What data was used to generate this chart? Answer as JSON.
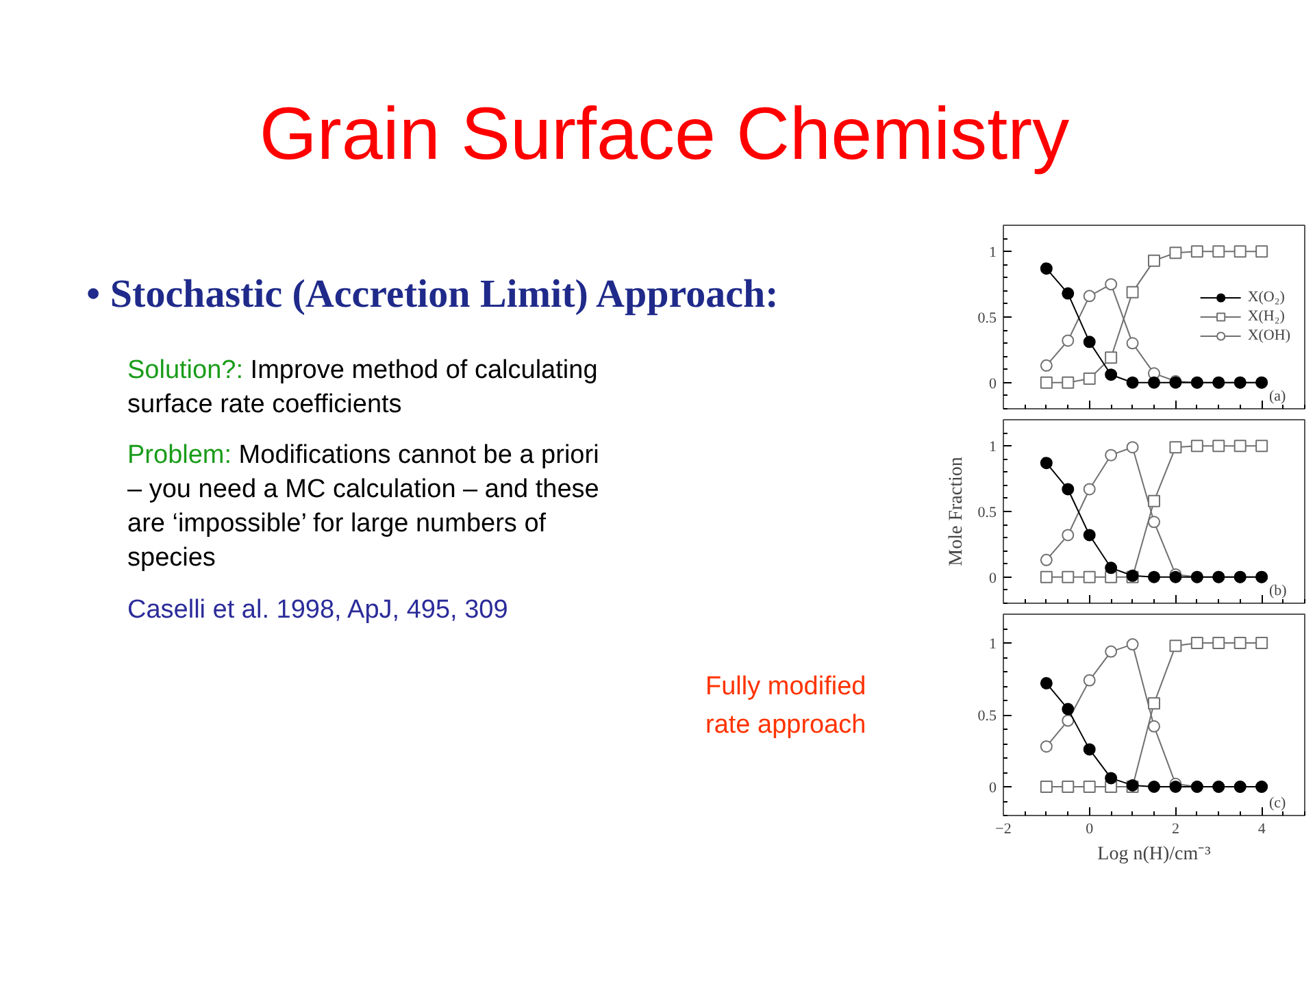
{
  "chart_data": [
    {
      "type": "other",
      "title": "Grain Surface Chemistry",
      "annotations": [
        "• Stochastic (Accretion Limit) Approach:",
        "Solution?:",
        "Improve method of calculating surface rate coefficients",
        "Problem:",
        "Modifications cannot be a priori – you need a MC calculation – and these are ‘impossible’ for large numbers of species",
        "Caselli et al. 1998, ApJ, 495, 309",
        "Fully modified rate approach"
      ]
    },
    {
      "type": "line",
      "x": [
        -1,
        -0.5,
        0,
        0.5,
        1,
        1.5,
        2,
        2.5,
        3,
        3.5,
        4
      ],
      "xlim": [
        -2,
        5
      ],
      "xticks": [
        -2,
        0,
        2,
        4
      ],
      "ylim": [
        -0.2,
        1.2
      ],
      "yticks": [
        0,
        0.5,
        1
      ],
      "tick_labels": "y",
      "grid": false,
      "legend": "right",
      "annotations": [
        "(a)"
      ],
      "series": [
        {
          "name": "X(O₂)",
          "color": "#000000",
          "marker": "circle",
          "values": [
            0.87,
            0.68,
            0.31,
            0.06,
            0,
            0,
            0,
            0,
            0,
            0,
            0
          ]
        },
        {
          "name": "X(H₂)",
          "color": "#707070",
          "marker": "square",
          "values": [
            0,
            0,
            0.03,
            0.19,
            0.69,
            0.93,
            0.99,
            1,
            1,
            1,
            1
          ]
        },
        {
          "name": "X(OH)",
          "color": "#707070",
          "marker": "circle",
          "values": [
            0.13,
            0.32,
            0.66,
            0.75,
            0.3,
            0.07,
            0.01,
            0,
            0,
            0,
            0
          ]
        }
      ]
    },
    {
      "type": "line",
      "x": [
        -1,
        -0.5,
        0,
        0.5,
        1,
        1.5,
        2,
        2.5,
        3,
        3.5,
        4
      ],
      "xlim": [
        -2,
        5
      ],
      "xticks": [
        -2,
        0,
        2,
        4
      ],
      "ylim": [
        -0.2,
        1.2
      ],
      "yticks": [
        0,
        0.5,
        1
      ],
      "tick_labels": "y",
      "grid": false,
      "ylabel": "Mole Fraction",
      "annotations": [
        "(b)"
      ],
      "series": [
        {
          "color": "#000000",
          "marker": "circle",
          "values": [
            0.87,
            0.67,
            0.32,
            0.07,
            0.01,
            0,
            0,
            0,
            0,
            0,
            0
          ]
        },
        {
          "color": "#707070",
          "marker": "square",
          "values": [
            0,
            0,
            0,
            0,
            0,
            0.58,
            0.99,
            1,
            1,
            1,
            1
          ]
        },
        {
          "color": "#707070",
          "marker": "circle",
          "values": [
            0.13,
            0.32,
            0.67,
            0.93,
            0.99,
            0.42,
            0.02,
            0,
            0,
            0,
            0
          ]
        }
      ]
    },
    {
      "type": "line",
      "x": [
        -1,
        -0.5,
        0,
        0.5,
        1,
        1.5,
        2,
        2.5,
        3,
        3.5,
        4
      ],
      "xlim": [
        -2,
        5
      ],
      "xticks": [
        -2,
        0,
        2,
        4
      ],
      "ylim": [
        -0.2,
        1.2
      ],
      "yticks": [
        0,
        0.5,
        1
      ],
      "grid": false,
      "xlabel": "Log n(H)/cm⁻³",
      "annotations": [
        "(c)"
      ],
      "series": [
        {
          "color": "#000000",
          "marker": "circle",
          "values": [
            0.72,
            0.54,
            0.26,
            0.06,
            0.01,
            0,
            0,
            0,
            0,
            0,
            0
          ]
        },
        {
          "color": "#707070",
          "marker": "square",
          "values": [
            0,
            0,
            0,
            0,
            0,
            0.58,
            0.98,
            1,
            1,
            1,
            1
          ]
        },
        {
          "color": "#707070",
          "marker": "circle",
          "values": [
            0.28,
            0.46,
            0.74,
            0.94,
            0.99,
            0.42,
            0.02,
            0,
            0,
            0,
            0
          ]
        }
      ]
    }
  ]
}
